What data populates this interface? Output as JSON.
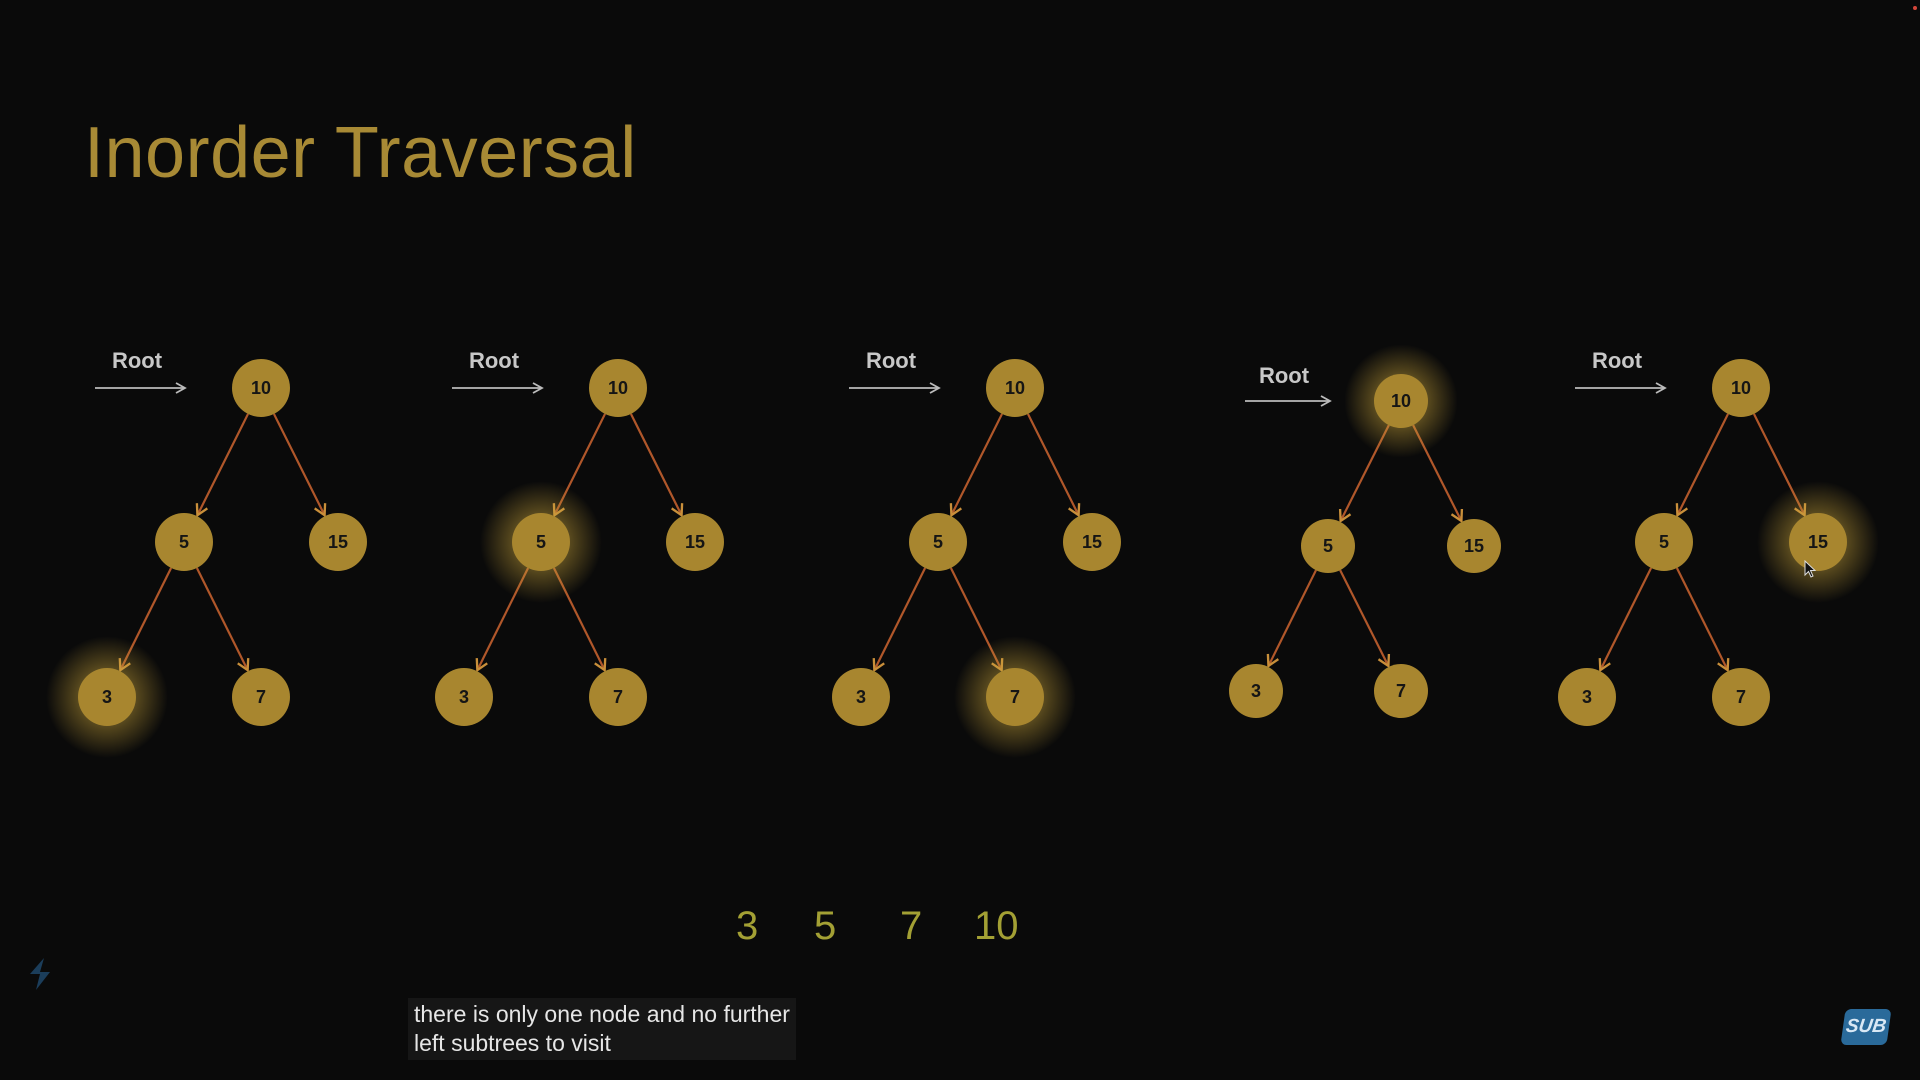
{
  "title": "Inorder Traversal",
  "root_label": "Root",
  "trees": [
    {
      "highlight": "3",
      "nodes": {
        "root": "10",
        "left": "5",
        "right": "15",
        "left_left": "3",
        "left_right": "7"
      }
    },
    {
      "highlight": "5",
      "nodes": {
        "root": "10",
        "left": "5",
        "right": "15",
        "left_left": "3",
        "left_right": "7"
      }
    },
    {
      "highlight": "7",
      "nodes": {
        "root": "10",
        "left": "5",
        "right": "15",
        "left_left": "3",
        "left_right": "7"
      }
    },
    {
      "highlight": "10",
      "nodes": {
        "root": "10",
        "left": "5",
        "right": "15",
        "left_left": "3",
        "left_right": "7"
      }
    },
    {
      "highlight": "15",
      "nodes": {
        "root": "10",
        "left": "5",
        "right": "15",
        "left_left": "3",
        "left_right": "7"
      }
    }
  ],
  "sequence": [
    "3",
    "5",
    "7",
    "10"
  ],
  "caption": {
    "line1": "there is only one node and no further",
    "line2": "left subtrees to visit"
  },
  "badge": "SUB",
  "colors": {
    "node_fill": "#a8862f",
    "node_text": "#151515",
    "edge": "#b0572a",
    "arrow_head": "#c98f3a",
    "glow": "#d8b44a",
    "root_arrow": "#bbbbbb",
    "sequence": "#a3a034",
    "title": "#a88a35"
  },
  "icons": [
    "logo-icon",
    "cursor-icon"
  ]
}
